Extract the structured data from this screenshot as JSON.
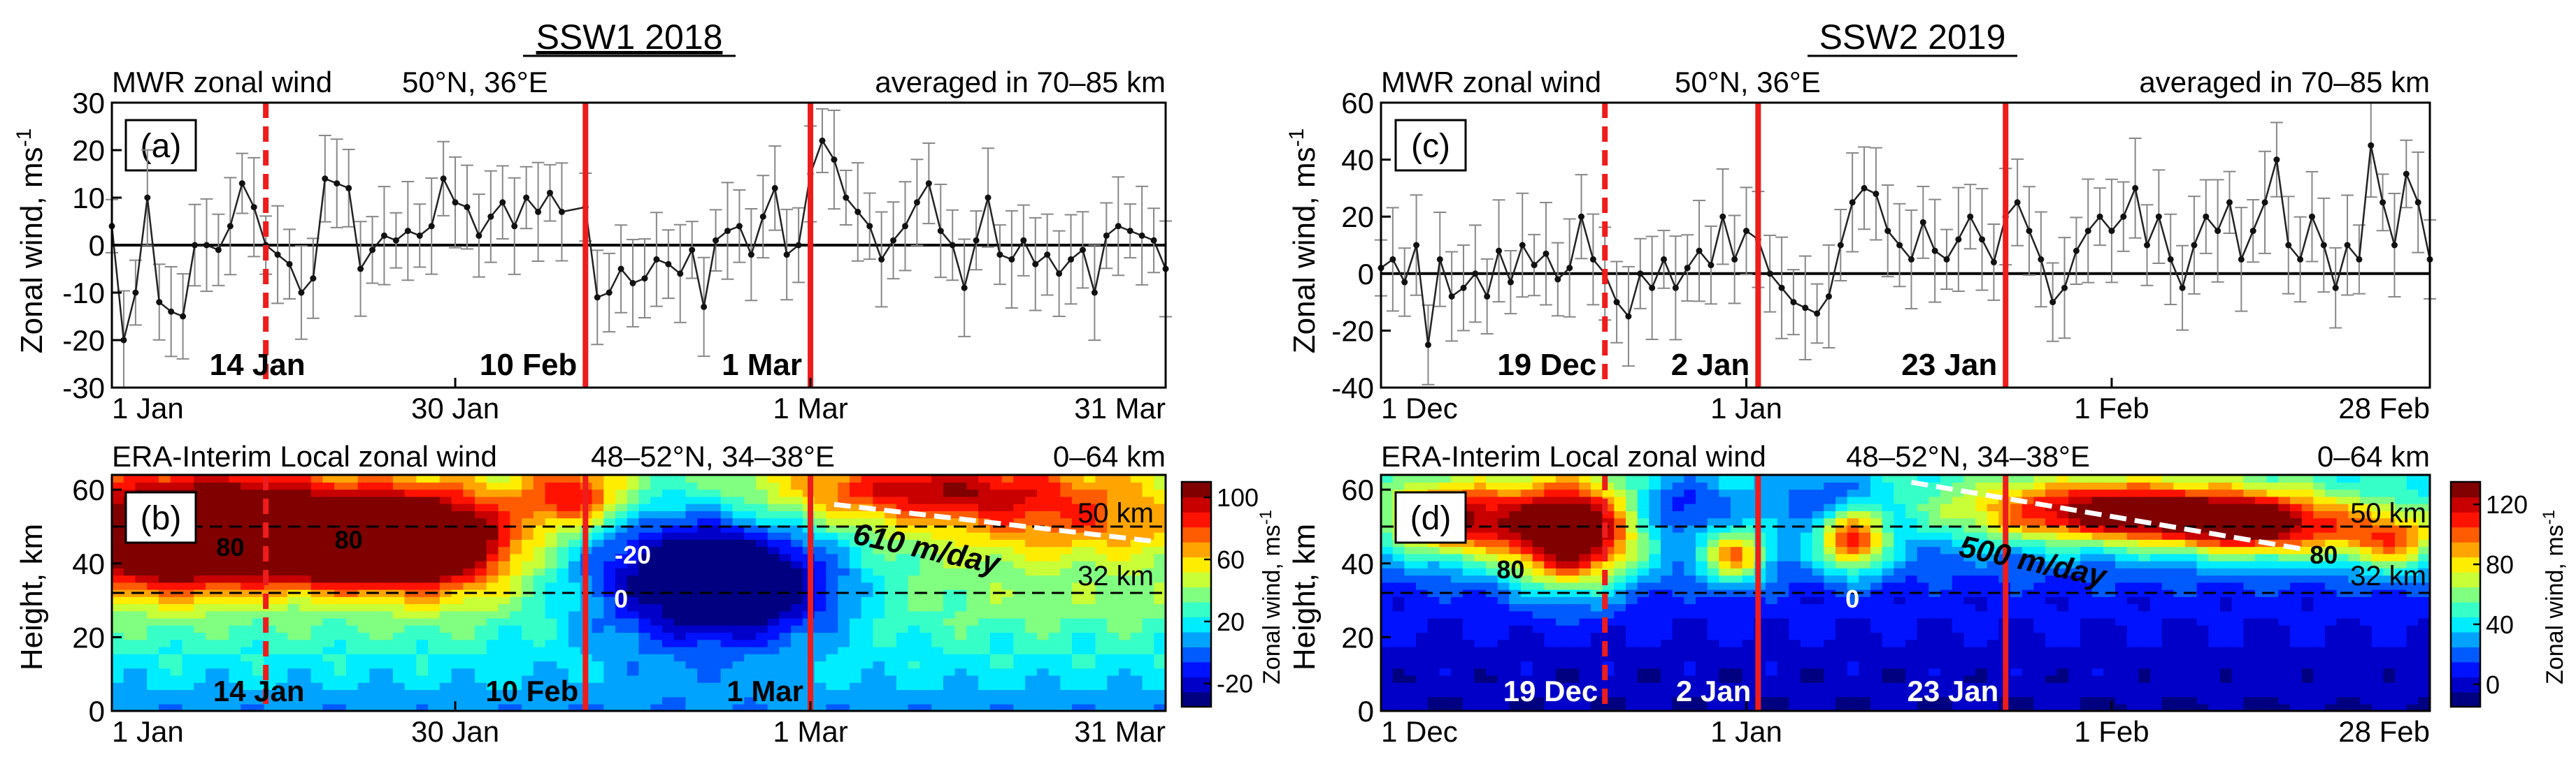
{
  "figure": {
    "left_title": "SSW1  2018",
    "right_title": "SSW2  2019",
    "label_a": "(a)",
    "label_b": "(b)",
    "label_c": "(c)",
    "label_d": "(d)",
    "mwr_header_left": "MWR zonal wind",
    "mwr_header_loc": "50°N, 36°E",
    "mwr_header_right": "averaged in 70–85 km",
    "era_header_left": "ERA-Interim Local zonal wind",
    "era_header_loc": "48–52°N, 34–38°E",
    "era_header_right": "0–64 km",
    "km50": "50 km",
    "km32": "32 km",
    "ylabel_wind": "Zonal wind,  ms",
    "ylabel_unit_sup": "-1",
    "ylabel_height": "Height, km",
    "cbar_label": "Zonal wind, ms",
    "speed_left": "610 m/day",
    "speed_right": "500 m/day",
    "colors": {
      "event": "#ee1c1c",
      "trend": "#ffffff",
      "series": "#222222"
    }
  },
  "chart_data": [
    {
      "panel": "a",
      "type": "line",
      "title": "MWR zonal wind 50°N, 36°E averaged in 70–85 km",
      "xlabel": "",
      "ylabel": "Zonal wind, ms-1",
      "xlim": [
        0,
        89
      ],
      "ylim": [
        -30,
        30
      ],
      "yticks": [
        "-30",
        "-20",
        "-10",
        "0",
        "10",
        "20",
        "30"
      ],
      "xtick_positions": [
        0,
        29,
        59,
        89
      ],
      "xticks": [
        "1 Jan",
        "30 Jan",
        "1 Mar",
        "31 Mar"
      ],
      "events": [
        {
          "day": 13,
          "label": "14 Jan",
          "style": "dashed"
        },
        {
          "day": 40,
          "label": "10 Feb",
          "style": "solid"
        },
        {
          "day": 59,
          "label": "1 Mar",
          "style": "solid"
        }
      ],
      "x": [
        0,
        1,
        2,
        3,
        4,
        5,
        6,
        7,
        8,
        9,
        10,
        11,
        12,
        13,
        14,
        15,
        16,
        17,
        18,
        19,
        20,
        21,
        22,
        23,
        24,
        25,
        26,
        27,
        28,
        29,
        30,
        31,
        32,
        33,
        34,
        35,
        36,
        37,
        38,
        40,
        41,
        42,
        43,
        44,
        45,
        46,
        47,
        48,
        49,
        50,
        51,
        52,
        53,
        54,
        55,
        56,
        57,
        58,
        59,
        60,
        61,
        62,
        63,
        64,
        65,
        66,
        67,
        68,
        69,
        70,
        71,
        72,
        73,
        74,
        75,
        76,
        77,
        78,
        79,
        80,
        81,
        82,
        83,
        84,
        85,
        86,
        87,
        88,
        89
      ],
      "values": [
        4,
        -20,
        -10,
        10,
        -12,
        -14,
        -15,
        0,
        0,
        -1,
        4,
        13,
        8,
        0,
        -2,
        -4,
        -10,
        -7,
        14,
        13,
        12,
        -5,
        -1,
        2,
        1,
        3,
        2,
        4,
        14,
        9,
        8,
        2,
        6,
        9,
        4,
        10,
        7,
        11,
        7,
        8,
        -11,
        -10,
        -5,
        -8,
        -7,
        -3,
        -4,
        -6,
        -1,
        -13,
        1,
        3,
        4,
        -2,
        6,
        12,
        -2,
        0,
        15,
        22,
        18,
        10,
        7,
        4,
        -3,
        1,
        4,
        9,
        13,
        3,
        0,
        -9,
        1,
        10,
        -2,
        -3,
        1,
        -4,
        -2,
        -6,
        -3,
        -1,
        -10,
        2,
        4,
        3,
        2,
        1,
        -5
      ],
      "errors": 8
    },
    {
      "panel": "b",
      "type": "heatmap",
      "title": "ERA-Interim Local zonal wind 48–52°N, 34–38°E 0–64 km",
      "xlabel": "",
      "ylabel": "Height, km",
      "xlim": [
        0,
        89
      ],
      "ylim": [
        0,
        64
      ],
      "yticks": [
        "0",
        "20",
        "40",
        "60"
      ],
      "xticks": [
        "1 Jan",
        "30 Jan",
        "1 Mar",
        "31 Mar"
      ],
      "xtick_positions": [
        0,
        29,
        59,
        89
      ],
      "colorbar": {
        "label": "Zonal wind, ms-1",
        "min": -35,
        "max": 110,
        "ticks": [
          -20,
          20,
          60,
          100
        ]
      },
      "events": [
        {
          "day": 13,
          "label": "14 Jan",
          "style": "dashed"
        },
        {
          "day": 40,
          "label": "10 Feb",
          "style": "solid"
        },
        {
          "day": 59,
          "label": "1 Mar",
          "style": "solid"
        }
      ],
      "reference_heights_km": [
        50,
        32
      ],
      "contour_labels": [
        "80",
        "80",
        "-20",
        "0"
      ],
      "trend": {
        "label": "610 m/day",
        "start": [
          61,
          56
        ],
        "end": [
          88,
          46
        ]
      },
      "blobs": [
        {
          "day": 9,
          "height": 52,
          "amp": 110,
          "sd": 9,
          "sh": 9
        },
        {
          "day": 19,
          "height": 44,
          "amp": 100,
          "sd": 4,
          "sh": 6
        },
        {
          "day": 27,
          "height": 46,
          "amp": 110,
          "sd": 5,
          "sh": 9
        },
        {
          "day": 5,
          "height": 40,
          "amp": 55,
          "sd": 7,
          "sh": 7
        },
        {
          "day": 39,
          "height": 58,
          "amp": 60,
          "sd": 3,
          "sh": 6
        },
        {
          "day": 48,
          "height": 38,
          "amp": -70,
          "sd": 7,
          "sh": 14
        },
        {
          "day": 55,
          "height": 34,
          "amp": -55,
          "sd": 6,
          "sh": 10
        },
        {
          "day": 70,
          "height": 60,
          "amp": 60,
          "sd": 10,
          "sh": 6
        },
        {
          "day": 82,
          "height": 50,
          "amp": 30,
          "sd": 8,
          "sh": 6
        }
      ],
      "base": {
        "surface": 4,
        "mid": 38,
        "top": 42
      }
    },
    {
      "panel": "c",
      "type": "line",
      "title": "MWR zonal wind 50°N, 36°E averaged in 70–85 km",
      "xlabel": "",
      "ylabel": "Zonal wind, ms-1",
      "xlim": [
        0,
        89
      ],
      "ylim": [
        -40,
        60
      ],
      "yticks": [
        "-40",
        "-20",
        "0",
        "20",
        "40",
        "60"
      ],
      "xtick_positions": [
        0,
        31,
        62,
        89
      ],
      "xticks": [
        "1 Dec",
        "1 Jan",
        "1 Feb",
        "28 Feb"
      ],
      "events": [
        {
          "day": 19,
          "label": "19  Dec",
          "style": "dashed"
        },
        {
          "day": 32,
          "label": "2  Jan",
          "style": "solid"
        },
        {
          "day": 53,
          "label": "23  Jan",
          "style": "solid"
        }
      ],
      "x": [
        0,
        1,
        2,
        3,
        4,
        5,
        6,
        7,
        8,
        9,
        10,
        11,
        12,
        13,
        14,
        15,
        16,
        17,
        18,
        19,
        20,
        21,
        22,
        23,
        24,
        25,
        26,
        27,
        28,
        29,
        30,
        31,
        32,
        33,
        34,
        35,
        36,
        37,
        38,
        39,
        40,
        41,
        42,
        43,
        44,
        45,
        46,
        47,
        48,
        49,
        50,
        51,
        52,
        53,
        54,
        55,
        56,
        57,
        58,
        59,
        60,
        61,
        62,
        63,
        64,
        65,
        66,
        67,
        68,
        69,
        70,
        71,
        72,
        73,
        74,
        75,
        76,
        77,
        78,
        79,
        80,
        81,
        82,
        83,
        84,
        85,
        86,
        87,
        88,
        89
      ],
      "values": [
        2,
        5,
        -3,
        10,
        -25,
        5,
        -8,
        -5,
        0,
        -8,
        8,
        -3,
        10,
        3,
        7,
        -2,
        2,
        20,
        5,
        0,
        -10,
        -15,
        0,
        -5,
        5,
        -5,
        2,
        8,
        3,
        20,
        5,
        15,
        12,
        0,
        -5,
        -10,
        -12,
        -14,
        -8,
        10,
        25,
        30,
        28,
        15,
        10,
        5,
        18,
        8,
        5,
        12,
        20,
        12,
        4,
        20,
        25,
        15,
        5,
        -10,
        -5,
        8,
        15,
        20,
        15,
        20,
        30,
        10,
        20,
        5,
        -5,
        10,
        20,
        15,
        25,
        5,
        15,
        25,
        40,
        10,
        5,
        20,
        10,
        -5,
        10,
        5,
        45,
        25,
        10,
        35,
        25,
        5
      ],
      "errors": 14
    },
    {
      "panel": "d",
      "type": "heatmap",
      "title": "ERA-Interim Local zonal wind 48–52°N, 34–38°E 0–64 km",
      "xlabel": "",
      "ylabel": "Height, km",
      "xlim": [
        0,
        89
      ],
      "ylim": [
        0,
        64
      ],
      "yticks": [
        "0",
        "20",
        "40",
        "60"
      ],
      "xticks": [
        "1 Dec",
        "1 Jan",
        "1 Feb",
        "28 Feb"
      ],
      "xtick_positions": [
        0,
        31,
        62,
        89
      ],
      "colorbar": {
        "label": "Zonal wind, ms-1",
        "min": -15,
        "max": 135,
        "ticks": [
          0,
          40,
          80,
          120
        ]
      },
      "events": [
        {
          "day": 19,
          "label": "19 Dec",
          "style": "dashed"
        },
        {
          "day": 32,
          "label": "2 Jan",
          "style": "solid"
        },
        {
          "day": 53,
          "label": "23 Jan",
          "style": "solid"
        }
      ],
      "reference_heights_km": [
        50,
        32
      ],
      "contour_labels": [
        "80",
        "80",
        "0"
      ],
      "trend": {
        "label": "500 m/day",
        "start": [
          45,
          62
        ],
        "end": [
          78,
          44
        ]
      },
      "blobs": [
        {
          "day": 6,
          "height": 52,
          "amp": 100,
          "sd": 4,
          "sh": 7
        },
        {
          "day": 16,
          "height": 48,
          "amp": 140,
          "sd": 4,
          "sh": 10
        },
        {
          "day": 30,
          "height": 42,
          "amp": 80,
          "sd": 2,
          "sh": 5
        },
        {
          "day": 40,
          "height": 46,
          "amp": 90,
          "sd": 2,
          "sh": 6
        },
        {
          "day": 62,
          "height": 54,
          "amp": 110,
          "sd": 9,
          "sh": 6
        },
        {
          "day": 75,
          "height": 50,
          "amp": 95,
          "sd": 6,
          "sh": 6
        },
        {
          "day": 86,
          "height": 46,
          "amp": 70,
          "sd": 3,
          "sh": 6
        },
        {
          "day": 25,
          "height": 56,
          "amp": -30,
          "sd": 3,
          "sh": 6
        },
        {
          "day": 38,
          "height": 58,
          "amp": -25,
          "sd": 3,
          "sh": 5
        }
      ],
      "base": {
        "surface": -10,
        "mid": 5,
        "top": 40
      }
    }
  ]
}
